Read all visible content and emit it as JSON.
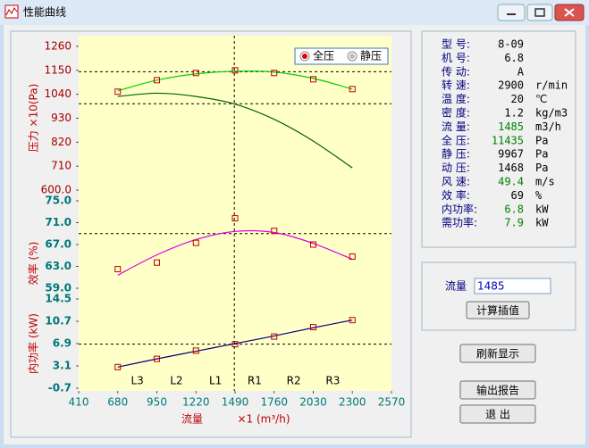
{
  "window": {
    "title": "性能曲线"
  },
  "chart_data": {
    "type": "line",
    "xlim": [
      410,
      2570
    ],
    "xticks": [
      410,
      680,
      950,
      1220,
      1490,
      1760,
      2030,
      2300,
      2570
    ],
    "xlabel": "流量",
    "xunit": "×1 (m³/h)",
    "x": [
      680,
      950,
      1220,
      1490,
      1760,
      2030,
      2300
    ],
    "reference_x": 1485,
    "regions": [
      "L3",
      "L2",
      "L1",
      "R1",
      "R2",
      "R3"
    ],
    "legend_corner": "top-right",
    "panels": [
      {
        "ylabel": "压力 ×10(Pa)",
        "ylim": [
          600,
          1260
        ],
        "yticks": [
          {
            "value": 600,
            "label": "600.0"
          },
          710,
          820,
          930,
          1040,
          1150,
          1260
        ],
        "reference": [
          1143.5,
          996.7
        ],
        "series": [
          {
            "name": "全压",
            "color": "#00d000",
            "points": [
              1052,
              1105,
              1138,
              1150,
              1138,
              1109,
              1064
            ],
            "values": [
              1056,
              1105,
              1134,
              1146,
              1142,
              1113,
              1064
            ]
          },
          {
            "name": "静压",
            "color": "#006400",
            "values": [
              1030,
              1045,
              1030,
              995,
              925,
              825,
              702
            ]
          }
        ]
      },
      {
        "ylabel": "效率 (%)",
        "ylim": [
          59,
          75
        ],
        "yticks": [
          {
            "value": 59,
            "label": "59.0"
          },
          {
            "value": 63,
            "label": "63.0"
          },
          {
            "value": 67,
            "label": "67.0"
          },
          {
            "value": 71,
            "label": "71.0"
          },
          {
            "value": 75,
            "label": "75.0"
          }
        ],
        "reference": [
          69
        ],
        "series": [
          {
            "color": "#e000e0",
            "points": [
              62.5,
              63.7,
              67.3,
              71.8,
              69.5,
              67.0,
              64.8
            ],
            "values": [
              61.4,
              65.1,
              67.9,
              69.4,
              69.2,
              67.2,
              64.3
            ]
          }
        ]
      },
      {
        "ylabel": "内功率 (kW)",
        "ylim": [
          -0.7,
          14.5
        ],
        "yticks": [
          -0.7,
          3.1,
          6.9,
          10.7,
          14.5
        ],
        "reference": [
          6.8
        ],
        "series": [
          {
            "color": "#000080",
            "points": [
              2.9,
              4.3,
              5.7,
              6.8,
              8.1,
              9.7,
              10.9
            ],
            "values": [
              2.9,
              4.3,
              5.6,
              6.9,
              8.2,
              9.6,
              10.9
            ]
          }
        ]
      }
    ]
  },
  "info": {
    "rows": [
      {
        "label": "型 号:",
        "value": "8-09",
        "color": "#000000"
      },
      {
        "label": "机 号:",
        "value": "6.8",
        "color": "#000000"
      },
      {
        "label": "传 动:",
        "value": "A",
        "color": "#000000"
      },
      {
        "label": "转 速:",
        "value": "2900",
        "unit": "r/min",
        "color": "#000000"
      },
      {
        "label": "温 度:",
        "value": "20",
        "unit": "℃",
        "color": "#000000"
      },
      {
        "label": "密 度:",
        "value": "1.2",
        "unit": "kg/m3",
        "color": "#000000"
      },
      {
        "label": "流 量:",
        "value": "1485",
        "unit": "m3/h",
        "color": "#008000"
      },
      {
        "label": "全 压:",
        "value": "11435",
        "unit": "Pa",
        "color": "#008000"
      },
      {
        "label": "静 压:",
        "value": "9967",
        "unit": "Pa",
        "color": "#000000"
      },
      {
        "label": "动 压:",
        "value": "1468",
        "unit": "Pa",
        "color": "#000000"
      },
      {
        "label": "风 速:",
        "value": "49.4",
        "unit": "m/s",
        "color": "#008000"
      },
      {
        "label": "效 率:",
        "value": "69",
        "unit": "%",
        "color": "#000000"
      },
      {
        "label": "内功率:",
        "value": "6.8",
        "unit": "kW",
        "color": "#008000"
      },
      {
        "label": "需功率:",
        "value": "7.9",
        "unit": "kW",
        "color": "#008000"
      }
    ]
  },
  "interp": {
    "label": "流量",
    "input": "1485",
    "button": "计算插值"
  },
  "buttons": [
    "刷新显示",
    "输出报告",
    "退 出"
  ]
}
